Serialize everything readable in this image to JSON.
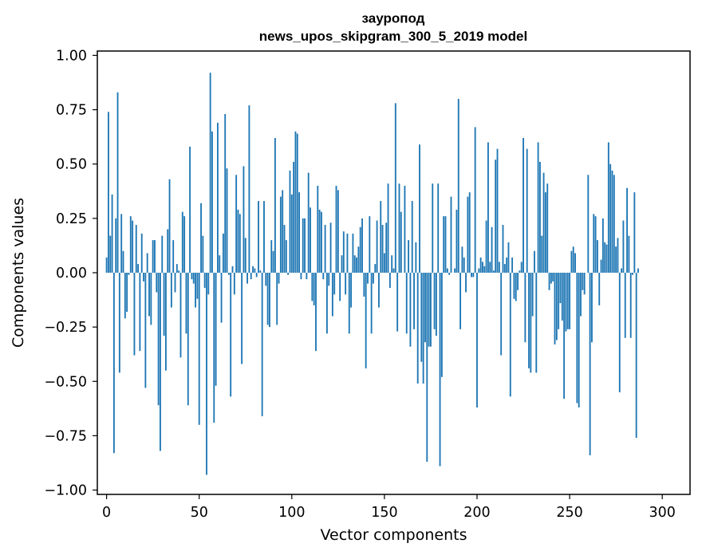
{
  "chart_data": {
    "type": "bar",
    "title": "зауропод",
    "subtitle": "news_upos_skipgram_300_5_2019 model",
    "xlabel": "Vector components",
    "ylabel": "Components values",
    "xlim": [
      -5,
      315
    ],
    "ylim": [
      -1.02,
      1.02
    ],
    "xticks": [
      0,
      50,
      100,
      150,
      200,
      250,
      300
    ],
    "yticks": [
      -1.0,
      -0.75,
      -0.5,
      -0.25,
      0.0,
      0.25,
      0.5,
      0.75,
      1.0
    ],
    "xtick_labels": [
      "0",
      "50",
      "100",
      "150",
      "200",
      "250",
      "300"
    ],
    "ytick_labels": [
      "−1.00",
      "−0.75",
      "−0.50",
      "−0.25",
      "0.00",
      "0.25",
      "0.50",
      "0.75",
      "1.00"
    ],
    "grid": false,
    "bar_color": "#1f77b4",
    "values": [
      0.07,
      0.74,
      0.17,
      0.36,
      -0.83,
      0.25,
      0.83,
      -0.46,
      0.27,
      0.1,
      -0.21,
      -0.18,
      -0.01,
      0.26,
      0.24,
      -0.38,
      0.22,
      0.04,
      -0.36,
      0.18,
      -0.04,
      -0.53,
      0.09,
      -0.2,
      -0.24,
      0.15,
      0.15,
      -0.09,
      -0.61,
      -0.82,
      0.17,
      -0.29,
      -0.45,
      0.2,
      0.43,
      -0.16,
      0.15,
      -0.09,
      0.04,
      0.01,
      -0.39,
      0.28,
      0.26,
      -0.28,
      -0.61,
      0.58,
      -0.03,
      -0.05,
      -0.16,
      -0.12,
      -0.7,
      0.32,
      0.17,
      -0.07,
      -0.93,
      -0.1,
      0.92,
      0.65,
      -0.69,
      -0.52,
      0.69,
      0.08,
      -0.23,
      0.18,
      0.73,
      0.48,
      -0.01,
      -0.57,
      0.03,
      -0.1,
      0.45,
      0.29,
      0.27,
      -0.42,
      0.49,
      0.16,
      -0.05,
      0.77,
      -0.03,
      0.03,
      0.02,
      -0.02,
      0.33,
      0.01,
      -0.66,
      0.33,
      -0.06,
      -0.24,
      -0.25,
      0.15,
      0.1,
      0.62,
      -0.24,
      -0.05,
      0.35,
      0.38,
      0.22,
      0.15,
      -0.01,
      0.47,
      0.36,
      0.51,
      0.65,
      0.64,
      0.37,
      -0.03,
      0.25,
      0.25,
      -0.03,
      0.46,
      0.3,
      -0.13,
      -0.15,
      -0.36,
      0.4,
      0.29,
      0.28,
      -0.03,
      0.22,
      -0.28,
      -0.06,
      0.23,
      -0.2,
      -0.1,
      0.4,
      0.38,
      -0.13,
      0.08,
      0.19,
      -0.1,
      0.18,
      -0.28,
      -0.16,
      0.18,
      0.08,
      0.07,
      0.12,
      0.21,
      0.25,
      -0.11,
      -0.44,
      -0.05,
      0.26,
      -0.28,
      -0.05,
      0.04,
      0.24,
      -0.16,
      0.33,
      0.22,
      0.09,
      0.23,
      0.41,
      -0.07,
      0.08,
      0.02,
      0.78,
      -0.27,
      0.41,
      0.28,
      0.0,
      0.4,
      -0.28,
      0.15,
      -0.34,
      0.33,
      -0.26,
      0.14,
      -0.51,
      0.59,
      -0.41,
      -0.51,
      -0.32,
      -0.87,
      -0.34,
      -0.34,
      0.41,
      -0.26,
      -0.29,
      0.41,
      -0.89,
      -0.48,
      0.26,
      0.26,
      0.02,
      -0.01,
      0.35,
      0.0,
      0.02,
      0.29,
      0.8,
      -0.26,
      0.12,
      0.07,
      -0.09,
      0.35,
      0.37,
      -0.02,
      -0.02,
      0.67,
      -0.62,
      0.02,
      0.07,
      0.05,
      0.03,
      0.24,
      0.6,
      0.05,
      0.21,
      0.01,
      0.52,
      0.57,
      0.05,
      -0.38,
      0.22,
      0.04,
      0.07,
      0.14,
      -0.57,
      0.07,
      -0.12,
      -0.13,
      -0.08,
      0.01,
      0.05,
      0.62,
      -0.32,
      0.57,
      -0.44,
      -0.46,
      -0.2,
      0.1,
      -0.46,
      0.6,
      0.51,
      0.17,
      0.46,
      0.37,
      0.41,
      -0.08,
      -0.05,
      -0.04,
      -0.33,
      -0.31,
      -0.26,
      -0.14,
      -0.22,
      -0.58,
      -0.27,
      -0.26,
      -0.26,
      0.1,
      0.12,
      0.09,
      -0.6,
      -0.62,
      -0.2,
      -0.08,
      -0.1,
      0.0,
      0.45,
      -0.84,
      -0.32,
      0.27,
      0.26,
      0.15,
      -0.15,
      0.06,
      0.25,
      0.14,
      0.13,
      0.6,
      0.5,
      0.47,
      0.45,
      0.12,
      0.16,
      -0.55,
      0.02,
      0.24,
      -0.3,
      0.39,
      0.17,
      -0.3,
      -0.01,
      0.37,
      -0.76,
      0.02
    ]
  }
}
